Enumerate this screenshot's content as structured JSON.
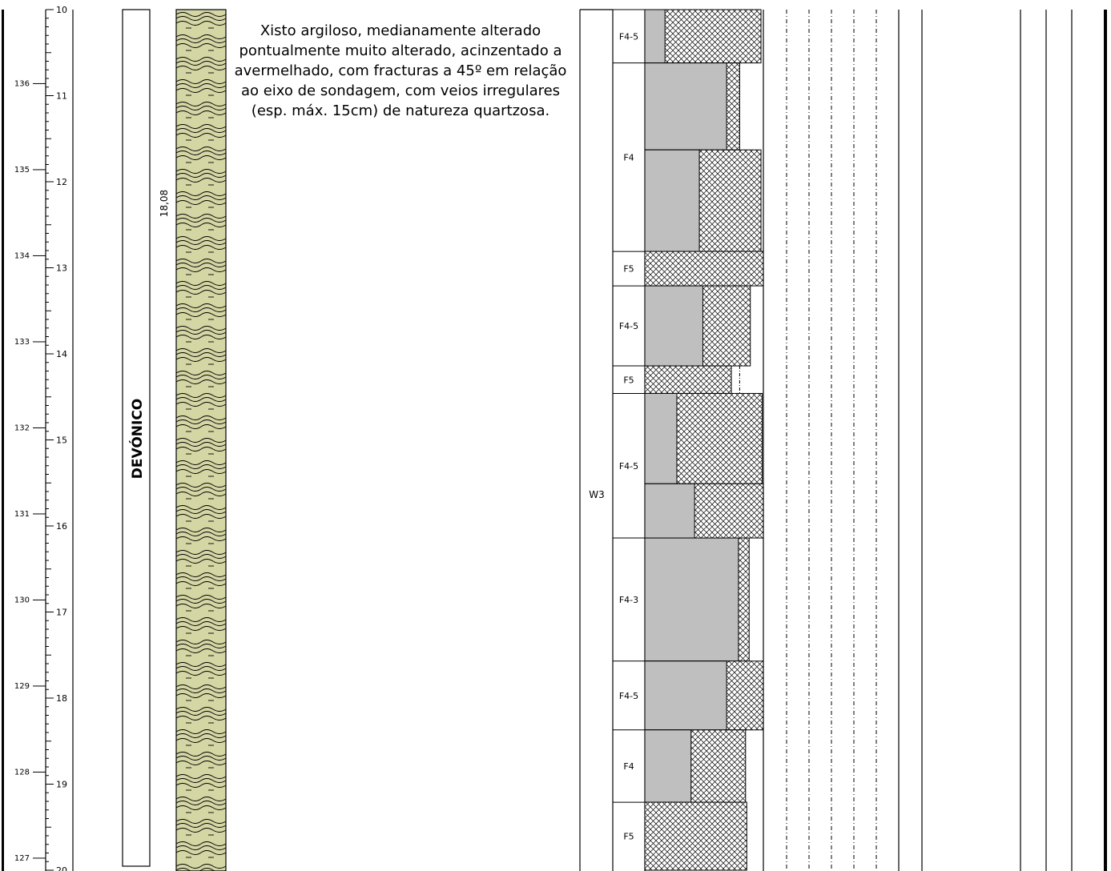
{
  "depth_scale": {
    "depths": [
      "10",
      "11",
      "12",
      "13",
      "14",
      "15",
      "16",
      "17",
      "18",
      "19",
      "20"
    ],
    "elevations": [
      {
        "depth": 10.86,
        "label": "136"
      },
      {
        "depth": 11.86,
        "label": "135"
      },
      {
        "depth": 12.86,
        "label": "134"
      },
      {
        "depth": 13.86,
        "label": "133"
      },
      {
        "depth": 14.86,
        "label": "132"
      },
      {
        "depth": 15.86,
        "label": "131"
      },
      {
        "depth": 16.86,
        "label": "130"
      },
      {
        "depth": 17.86,
        "label": "129"
      },
      {
        "depth": 18.86,
        "label": "128"
      },
      {
        "depth": 19.86,
        "label": "127"
      }
    ]
  },
  "stratigraphy": {
    "label": "DEVÓNICO"
  },
  "layer_bottom_depth": "18,08",
  "description": "Xisto argiloso, medianamente alterado pontualmente muito alterado, acinzentado a avermelhado, com fracturas a 45º em relação ao eixo de sondagem, com veios irregulares (esp. máx. 15cm) de natureza quartzosa.",
  "weathering": {
    "label": "W3"
  },
  "fracturing": [
    {
      "label": "F4-5",
      "from": 10.0,
      "to": 10.62
    },
    {
      "label": "F4",
      "from": 10.62,
      "to": 12.81
    },
    {
      "label": "F5",
      "from": 12.81,
      "to": 13.21
    },
    {
      "label": "F4-5",
      "from": 13.21,
      "to": 14.14
    },
    {
      "label": "F5",
      "from": 14.14,
      "to": 14.46
    },
    {
      "label": "F4-5",
      "from": 14.46,
      "to": 16.14
    },
    {
      "label": "F4-3",
      "from": 16.14,
      "to": 17.57
    },
    {
      "label": "F4-5",
      "from": 17.57,
      "to": 18.37
    },
    {
      "label": "F4",
      "from": 18.37,
      "to": 19.21
    },
    {
      "label": "F5",
      "from": 19.21,
      "to": 20.0
    }
  ],
  "core_recovery": [
    {
      "from": 10.0,
      "to": 10.62,
      "rqd": 17,
      "tcr": 98
    },
    {
      "from": 10.62,
      "to": 11.63,
      "rqd": 69,
      "tcr": 80
    },
    {
      "from": 11.63,
      "to": 12.81,
      "rqd": 46,
      "tcr": 98
    },
    {
      "from": 12.81,
      "to": 13.21,
      "rqd": 0,
      "tcr": 100
    },
    {
      "from": 13.21,
      "to": 14.14,
      "rqd": 49,
      "tcr": 89
    },
    {
      "from": 14.14,
      "to": 14.46,
      "rqd": 0,
      "tcr": 73
    },
    {
      "from": 14.46,
      "to": 15.51,
      "rqd": 27,
      "tcr": 99
    },
    {
      "from": 15.51,
      "to": 16.14,
      "rqd": 42,
      "tcr": 100
    },
    {
      "from": 16.14,
      "to": 17.57,
      "rqd": 79,
      "tcr": 88
    },
    {
      "from": 17.57,
      "to": 18.37,
      "rqd": 69,
      "tcr": 100
    },
    {
      "from": 18.37,
      "to": 19.21,
      "rqd": 39,
      "tcr": 85
    },
    {
      "from": 19.21,
      "to": 20.0,
      "rqd": 0,
      "tcr": 86
    }
  ],
  "colors": {
    "lithology_fill": "#d4d6a4",
    "rqd_fill": "#bfbfbf",
    "line": "#000000"
  }
}
